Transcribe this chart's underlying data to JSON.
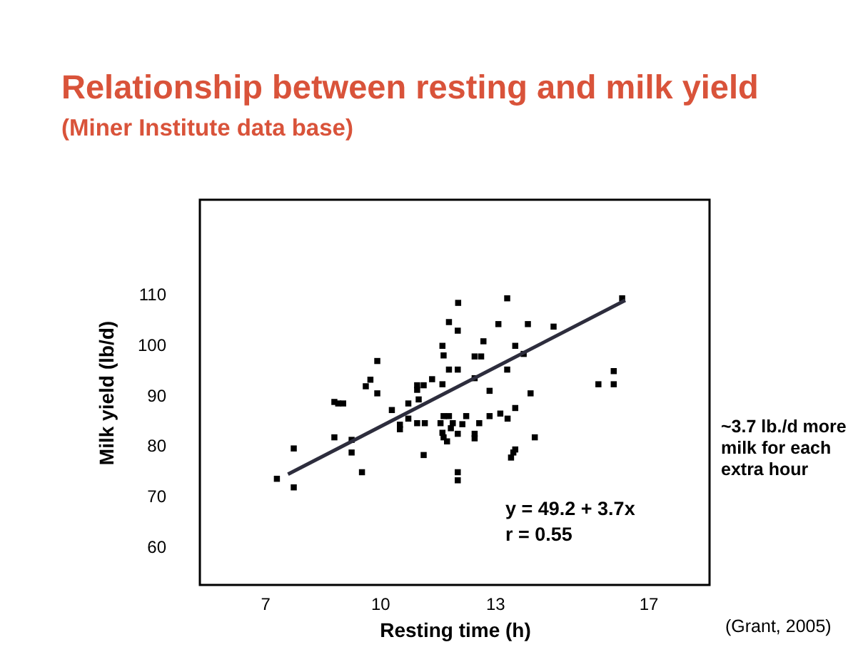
{
  "chart_data": {
    "type": "scatter",
    "title": "Relationship between resting and milk yield",
    "subtitle": "(Miner Institute data base)",
    "xlabel": "Resting time (h)",
    "ylabel": "Milk yield (lb/d)",
    "xlim": [
      5.3,
      18.6
    ],
    "ylim": [
      52.4,
      128.6
    ],
    "xticks": [
      7,
      10,
      13,
      17
    ],
    "yticks": [
      60,
      70,
      80,
      90,
      100,
      110
    ],
    "grid": false,
    "marker": "square",
    "annotations": [
      "y = 49.2 + 3.7x",
      "r = 0.55",
      "~3.7 lb./d more milk for each extra hour",
      "(Grant, 2005)"
    ],
    "series": [
      {
        "color": "#000000",
        "x": [
          7.31,
          7.75,
          7.75,
          8.81,
          8.91,
          9.04,
          8.81,
          9.26,
          9.26,
          9.53,
          9.93,
          9.75,
          9.63,
          9.93,
          10.31,
          10.52,
          10.52,
          10.74,
          10.74,
          10.97,
          10.97,
          11.14,
          11.01,
          10.97,
          11.17,
          11.14,
          12.04,
          13.32,
          16.32,
          11.8,
          12.03,
          13.09,
          13.86,
          14.53,
          12.7,
          11.63,
          11.66,
          13.53,
          12.47,
          12.64,
          13.75,
          11.8,
          12.03,
          13.32,
          12.47,
          11.63,
          11.36,
          12.86,
          13.93,
          15.7,
          16.1,
          16.1,
          11.66,
          11.8,
          12.25,
          12.86,
          13.14,
          13.33,
          13.53,
          11.58,
          11.9,
          12.15,
          12.59,
          11.63,
          11.66,
          11.75,
          11.85,
          12.03,
          12.47,
          12.47,
          14.04,
          13.53,
          13.48,
          13.42,
          12.03,
          12.03
        ],
        "values": [
          73.4,
          79.4,
          71.7,
          88.6,
          88.3,
          88.3,
          81.6,
          81.1,
          78.6,
          74.7,
          96.7,
          93.0,
          91.7,
          90.3,
          87.0,
          84.1,
          83.2,
          88.3,
          85.3,
          91.9,
          91.0,
          91.9,
          89.1,
          84.4,
          84.4,
          78.1,
          108.2,
          109.1,
          109.1,
          104.4,
          102.7,
          104.0,
          104.0,
          103.5,
          100.6,
          99.7,
          97.8,
          99.7,
          97.6,
          97.6,
          98.1,
          95.0,
          95.0,
          95.0,
          93.3,
          92.1,
          93.1,
          90.8,
          90.3,
          92.1,
          92.1,
          94.7,
          85.8,
          85.8,
          85.8,
          85.8,
          86.3,
          85.3,
          87.4,
          84.4,
          84.4,
          84.2,
          84.4,
          82.5,
          81.6,
          80.8,
          83.4,
          82.3,
          82.3,
          81.4,
          81.6,
          79.2,
          78.6,
          77.6,
          74.7,
          73.1
        ]
      },
      {
        "type": "line",
        "marker": "none",
        "color": "#2d2d3d",
        "x": [
          7.6,
          16.4
        ],
        "values": [
          74.3,
          108.7
        ]
      }
    ]
  }
}
